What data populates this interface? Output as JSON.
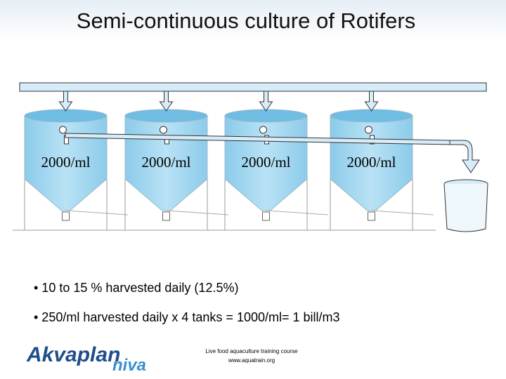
{
  "header": {
    "title": "Semi-continuous culture of Rotifers"
  },
  "tanks": [
    {
      "label": "2000/ml"
    },
    {
      "label": "2000/ml"
    },
    {
      "label": "2000/ml"
    },
    {
      "label": "2000/ml"
    }
  ],
  "bullets": [
    "• 10 to 15 % harvested daily  (12.5%)",
    "• 250/ml harvested daily x 4 tanks = 1000/ml= 1 bill/m3"
  ],
  "logo": {
    "primary": "Akvaplan",
    "secondary": "niva"
  },
  "footer": [
    "Live food aquaculture training course",
    "www.aquatrain.org"
  ]
}
